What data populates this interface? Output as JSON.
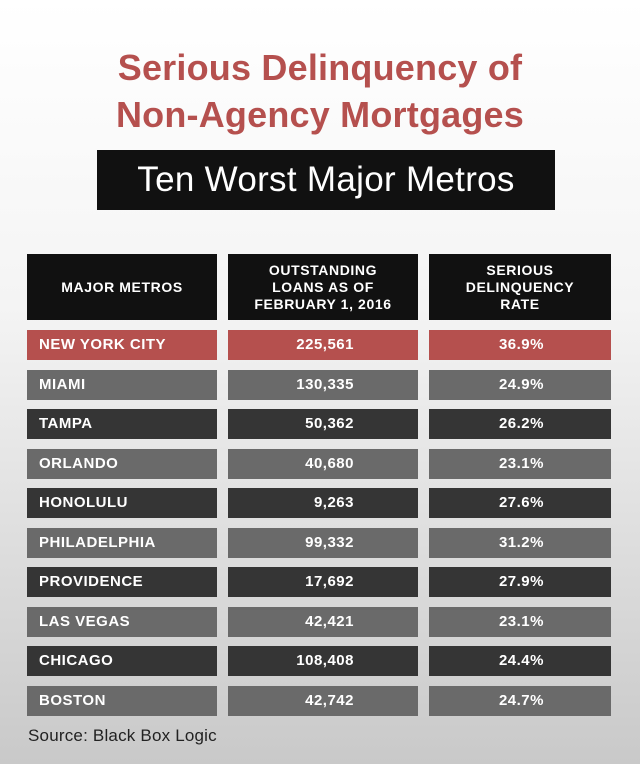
{
  "title": {
    "line1": "Serious Delinquency of",
    "line2": "Non-Agency Mortgages"
  },
  "subtitle": "Ten Worst Major Metros",
  "colors": {
    "accent_red": "#b5504e",
    "header_black": "#111111",
    "row_dark": "#353535",
    "row_light": "#6a6a6a"
  },
  "chart_data": {
    "type": "table",
    "title": "Serious Delinquency of Non-Agency Mortgages",
    "subtitle": "Ten Worst Major Metros",
    "columns": [
      "MAJOR METROS",
      "OUTSTANDING\nLOANS AS OF\nFEBRUARY 1,  2016",
      "SERIOUS\nDELINQUENCY\nRATE"
    ],
    "rows": [
      {
        "metro": "NEW YORK CITY",
        "loans": "225,561",
        "rate": "36.9%",
        "highlight": true
      },
      {
        "metro": "MIAMI",
        "loans": "130,335",
        "rate": "24.9%",
        "highlight": false
      },
      {
        "metro": "TAMPA",
        "loans": "50,362",
        "rate": "26.2%",
        "highlight": false
      },
      {
        "metro": "ORLANDO",
        "loans": "40,680",
        "rate": "23.1%",
        "highlight": false
      },
      {
        "metro": "HONOLULU",
        "loans": "9,263",
        "rate": "27.6%",
        "highlight": false
      },
      {
        "metro": "PHILADELPHIA",
        "loans": "99,332",
        "rate": "31.2%",
        "highlight": false
      },
      {
        "metro": "PROVIDENCE",
        "loans": "17,692",
        "rate": "27.9%",
        "highlight": false
      },
      {
        "metro": "LAS VEGAS",
        "loans": "42,421",
        "rate": "23.1%",
        "highlight": false
      },
      {
        "metro": "CHICAGO",
        "loans": "108,408",
        "rate": "24.4%",
        "highlight": false
      },
      {
        "metro": "BOSTON",
        "loans": "42,742",
        "rate": "24.7%",
        "highlight": false
      }
    ]
  },
  "source": "Source:  Black Box Logic"
}
